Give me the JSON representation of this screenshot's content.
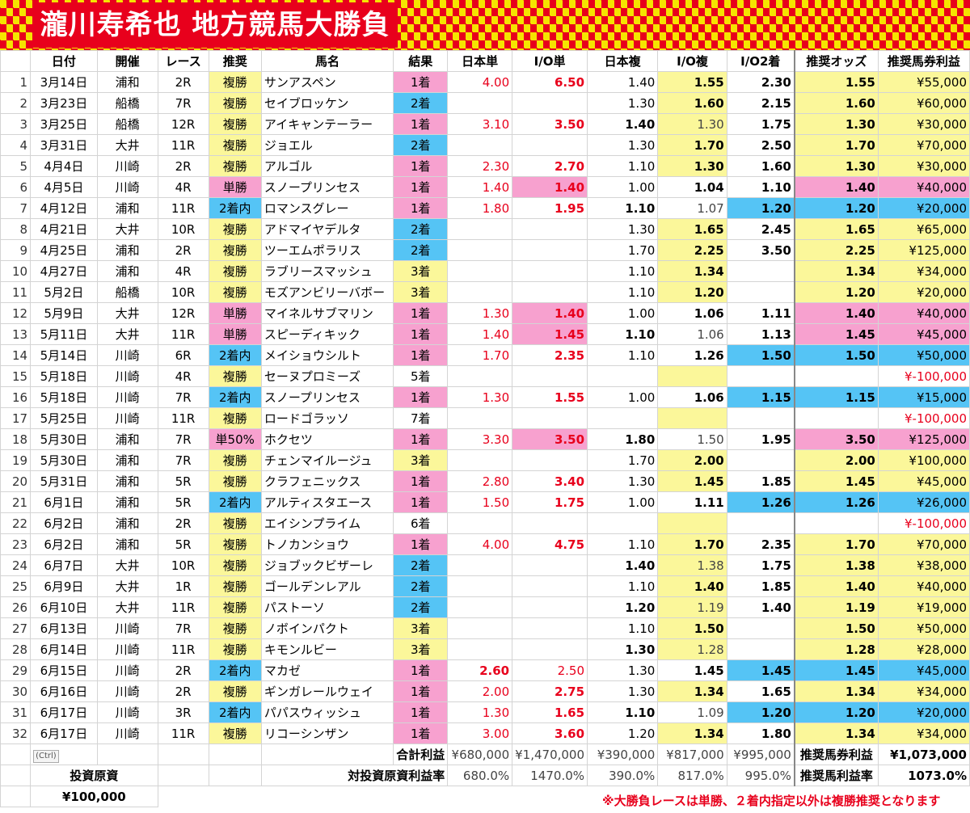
{
  "sheet": {
    "title": "瀧川寿希也 地方競馬大勝負",
    "footnote": "※大勝負レースは単勝、２着内指定以外は複勝推奨となります",
    "ctrl_label": "(Ctrl)",
    "colors": {
      "pink": "#f7a1cf",
      "yellow": "#fbf79a",
      "blue": "#55c4f5",
      "red": "#e8001c"
    }
  },
  "columns": [
    "日付",
    "開催",
    "レース",
    "推奨",
    "馬名",
    "結果",
    "日本単",
    "I/O単",
    "日本複",
    "I/O複",
    "I/O2着",
    "推奨オッズ",
    "推奨馬券利益"
  ],
  "rows": [
    {
      "n": "1",
      "date": "3月14日",
      "venue": "浦和",
      "race": "2R",
      "rec": "複勝",
      "horse": "サンアスペン",
      "result": "1着",
      "jw": "4.00",
      "iow": "6.50",
      "jp": "1.40",
      "iop": "1.55",
      "io2": "2.30",
      "odds": "1.55",
      "profit": "¥55,000"
    },
    {
      "n": "2",
      "date": "3月23日",
      "venue": "船橋",
      "race": "7R",
      "rec": "複勝",
      "horse": "セイブロッケン",
      "result": "2着",
      "jw": "",
      "iow": "",
      "jp": "1.30",
      "iop": "1.60",
      "io2": "2.15",
      "odds": "1.60",
      "profit": "¥60,000"
    },
    {
      "n": "3",
      "date": "3月25日",
      "venue": "船橋",
      "race": "12R",
      "rec": "複勝",
      "horse": "アイキャンテーラー",
      "result": "1着",
      "jw": "3.10",
      "iow": "3.50",
      "jp": "1.40",
      "iop": "1.30",
      "io2": "1.75",
      "odds": "1.30",
      "profit": "¥30,000"
    },
    {
      "n": "4",
      "date": "3月31日",
      "venue": "大井",
      "race": "11R",
      "rec": "複勝",
      "horse": "ジョエル",
      "result": "2着",
      "jw": "",
      "iow": "",
      "jp": "1.30",
      "iop": "1.70",
      "io2": "2.50",
      "odds": "1.70",
      "profit": "¥70,000"
    },
    {
      "n": "5",
      "date": "4月4日",
      "venue": "川崎",
      "race": "2R",
      "rec": "複勝",
      "horse": "アルゴル",
      "result": "1着",
      "jw": "2.30",
      "iow": "2.70",
      "jp": "1.10",
      "iop": "1.30",
      "io2": "1.60",
      "odds": "1.30",
      "profit": "¥30,000"
    },
    {
      "n": "6",
      "date": "4月5日",
      "venue": "川崎",
      "race": "4R",
      "rec": "単勝",
      "horse": "スノープリンセス",
      "result": "1着",
      "jw": "1.40",
      "iow": "1.40",
      "jp": "1.00",
      "iop": "1.04",
      "io2": "1.10",
      "odds": "1.40",
      "profit": "¥40,000"
    },
    {
      "n": "7",
      "date": "4月12日",
      "venue": "浦和",
      "race": "11R",
      "rec": "2着内",
      "horse": "ロマンスグレー",
      "result": "1着",
      "jw": "1.80",
      "iow": "1.95",
      "jp": "1.10",
      "iop": "1.07",
      "io2": "1.20",
      "odds": "1.20",
      "profit": "¥20,000"
    },
    {
      "n": "8",
      "date": "4月21日",
      "venue": "大井",
      "race": "10R",
      "rec": "複勝",
      "horse": "アドマイヤデルタ",
      "result": "2着",
      "jw": "",
      "iow": "",
      "jp": "1.30",
      "iop": "1.65",
      "io2": "2.45",
      "odds": "1.65",
      "profit": "¥65,000"
    },
    {
      "n": "9",
      "date": "4月25日",
      "venue": "浦和",
      "race": "2R",
      "rec": "複勝",
      "horse": "ツーエムポラリス",
      "result": "2着",
      "jw": "",
      "iow": "",
      "jp": "1.70",
      "iop": "2.25",
      "io2": "3.50",
      "odds": "2.25",
      "profit": "¥125,000"
    },
    {
      "n": "10",
      "date": "4月27日",
      "venue": "浦和",
      "race": "4R",
      "rec": "複勝",
      "horse": "ラブリースマッシュ",
      "result": "3着",
      "jw": "",
      "iow": "",
      "jp": "1.10",
      "iop": "1.34",
      "io2": "",
      "odds": "1.34",
      "profit": "¥34,000"
    },
    {
      "n": "11",
      "date": "5月2日",
      "venue": "船橋",
      "race": "10R",
      "rec": "複勝",
      "horse": "モズアンビリーバボー",
      "result": "3着",
      "jw": "",
      "iow": "",
      "jp": "1.10",
      "iop": "1.20",
      "io2": "",
      "odds": "1.20",
      "profit": "¥20,000"
    },
    {
      "n": "12",
      "date": "5月9日",
      "venue": "大井",
      "race": "12R",
      "rec": "単勝",
      "horse": "マイネルサブマリン",
      "result": "1着",
      "jw": "1.30",
      "iow": "1.40",
      "jp": "1.00",
      "iop": "1.06",
      "io2": "1.11",
      "odds": "1.40",
      "profit": "¥40,000"
    },
    {
      "n": "13",
      "date": "5月11日",
      "venue": "大井",
      "race": "11R",
      "rec": "単勝",
      "horse": "スピーディキック",
      "result": "1着",
      "jw": "1.40",
      "iow": "1.45",
      "jp": "1.10",
      "iop": "1.06",
      "io2": "1.13",
      "odds": "1.45",
      "profit": "¥45,000"
    },
    {
      "n": "14",
      "date": "5月14日",
      "venue": "川崎",
      "race": "6R",
      "rec": "2着内",
      "horse": "メイショウシルト",
      "result": "1着",
      "jw": "1.70",
      "iow": "2.35",
      "jp": "1.10",
      "iop": "1.26",
      "io2": "1.50",
      "odds": "1.50",
      "profit": "¥50,000"
    },
    {
      "n": "15",
      "date": "5月18日",
      "venue": "川崎",
      "race": "4R",
      "rec": "複勝",
      "horse": "セーヌプロミーズ",
      "result": "5着",
      "jw": "",
      "iow": "",
      "jp": "",
      "iop": "",
      "io2": "",
      "odds": "",
      "profit": "¥-100,000"
    },
    {
      "n": "16",
      "date": "5月18日",
      "venue": "川崎",
      "race": "7R",
      "rec": "2着内",
      "horse": "スノープリンセス",
      "result": "1着",
      "jw": "1.30",
      "iow": "1.55",
      "jp": "1.00",
      "iop": "1.06",
      "io2": "1.15",
      "odds": "1.15",
      "profit": "¥15,000"
    },
    {
      "n": "17",
      "date": "5月25日",
      "venue": "川崎",
      "race": "11R",
      "rec": "複勝",
      "horse": "ロードゴラッソ",
      "result": "7着",
      "jw": "",
      "iow": "",
      "jp": "",
      "iop": "",
      "io2": "",
      "odds": "",
      "profit": "¥-100,000"
    },
    {
      "n": "18",
      "date": "5月30日",
      "venue": "浦和",
      "race": "7R",
      "rec": "単50%",
      "horse": "ホクセツ",
      "result": "1着",
      "jw": "3.30",
      "iow": "3.50",
      "jp": "1.80",
      "iop": "1.50",
      "io2": "1.95",
      "odds": "3.50",
      "profit": "¥125,000"
    },
    {
      "n": "19",
      "date": "5月30日",
      "venue": "浦和",
      "race": "7R",
      "rec": "複勝",
      "horse": "チェンマイルージュ",
      "result": "3着",
      "jw": "",
      "iow": "",
      "jp": "1.70",
      "iop": "2.00",
      "io2": "",
      "odds": "2.00",
      "profit": "¥100,000"
    },
    {
      "n": "20",
      "date": "5月31日",
      "venue": "浦和",
      "race": "5R",
      "rec": "複勝",
      "horse": "クラフェニックス",
      "result": "1着",
      "jw": "2.80",
      "iow": "3.40",
      "jp": "1.30",
      "iop": "1.45",
      "io2": "1.85",
      "odds": "1.45",
      "profit": "¥45,000"
    },
    {
      "n": "21",
      "date": "6月1日",
      "venue": "浦和",
      "race": "5R",
      "rec": "2着内",
      "horse": "アルティスタエース",
      "result": "1着",
      "jw": "1.50",
      "iow": "1.75",
      "jp": "1.00",
      "iop": "1.11",
      "io2": "1.26",
      "odds": "1.26",
      "profit": "¥26,000"
    },
    {
      "n": "22",
      "date": "6月2日",
      "venue": "浦和",
      "race": "2R",
      "rec": "複勝",
      "horse": "エイシンプライム",
      "result": "6着",
      "jw": "",
      "iow": "",
      "jp": "",
      "iop": "",
      "io2": "",
      "odds": "",
      "profit": "¥-100,000"
    },
    {
      "n": "23",
      "date": "6月2日",
      "venue": "浦和",
      "race": "5R",
      "rec": "複勝",
      "horse": "トノカンショウ",
      "result": "1着",
      "jw": "4.00",
      "iow": "4.75",
      "jp": "1.10",
      "iop": "1.70",
      "io2": "2.35",
      "odds": "1.70",
      "profit": "¥70,000"
    },
    {
      "n": "24",
      "date": "6月7日",
      "venue": "大井",
      "race": "10R",
      "rec": "複勝",
      "horse": "ジョブックビザーレ",
      "result": "2着",
      "jw": "",
      "iow": "",
      "jp": "1.40",
      "iop": "1.38",
      "io2": "1.75",
      "odds": "1.38",
      "profit": "¥38,000"
    },
    {
      "n": "25",
      "date": "6月9日",
      "venue": "大井",
      "race": "1R",
      "rec": "複勝",
      "horse": "ゴールデンレアル",
      "result": "2着",
      "jw": "",
      "iow": "",
      "jp": "1.10",
      "iop": "1.40",
      "io2": "1.85",
      "odds": "1.40",
      "profit": "¥40,000"
    },
    {
      "n": "26",
      "date": "6月10日",
      "venue": "大井",
      "race": "11R",
      "rec": "複勝",
      "horse": "パストーソ",
      "result": "2着",
      "jw": "",
      "iow": "",
      "jp": "1.20",
      "iop": "1.19",
      "io2": "1.40",
      "odds": "1.19",
      "profit": "¥19,000"
    },
    {
      "n": "27",
      "date": "6月13日",
      "venue": "川崎",
      "race": "7R",
      "rec": "複勝",
      "horse": "ノボインパクト",
      "result": "3着",
      "jw": "",
      "iow": "",
      "jp": "1.10",
      "iop": "1.50",
      "io2": "",
      "odds": "1.50",
      "profit": "¥50,000"
    },
    {
      "n": "28",
      "date": "6月14日",
      "venue": "川崎",
      "race": "11R",
      "rec": "複勝",
      "horse": "キモンルビー",
      "result": "3着",
      "jw": "",
      "iow": "",
      "jp": "1.30",
      "iop": "1.28",
      "io2": "",
      "odds": "1.28",
      "profit": "¥28,000"
    },
    {
      "n": "29",
      "date": "6月15日",
      "venue": "川崎",
      "race": "2R",
      "rec": "2着内",
      "horse": "マカゼ",
      "result": "1着",
      "jw": "2.60",
      "iow": "2.50",
      "jp": "1.30",
      "iop": "1.45",
      "io2": "1.45",
      "odds": "1.45",
      "profit": "¥45,000"
    },
    {
      "n": "30",
      "date": "6月16日",
      "venue": "川崎",
      "race": "2R",
      "rec": "複勝",
      "horse": "ギンガレールウェイ",
      "result": "1着",
      "jw": "2.00",
      "iow": "2.75",
      "jp": "1.30",
      "iop": "1.34",
      "io2": "1.65",
      "odds": "1.34",
      "profit": "¥34,000"
    },
    {
      "n": "31",
      "date": "6月17日",
      "venue": "川崎",
      "race": "3R",
      "rec": "2着内",
      "horse": "パパスウィッシュ",
      "result": "1着",
      "jw": "1.30",
      "iow": "1.65",
      "jp": "1.10",
      "iop": "1.09",
      "io2": "1.20",
      "odds": "1.20",
      "profit": "¥20,000"
    },
    {
      "n": "32",
      "date": "6月17日",
      "venue": "川崎",
      "race": "11R",
      "rec": "複勝",
      "horse": "リコーシンザン",
      "result": "1着",
      "jw": "3.00",
      "iow": "3.60",
      "jp": "1.20",
      "iop": "1.34",
      "io2": "1.80",
      "odds": "1.34",
      "profit": "¥34,000"
    }
  ],
  "summary": {
    "total_label": "合計利益",
    "total_jw": "¥680,000",
    "total_iow": "¥1,470,000",
    "total_jp": "¥390,000",
    "total_iop": "¥817,000",
    "total_io2": "¥995,000",
    "rec_profit_label": "推奨馬券利益",
    "rec_profit": "¥1,073,000",
    "capital_label": "投資原資",
    "capital": "¥100,000",
    "rate_label": "対投資原資利益率",
    "rate_jw": "680.0%",
    "rate_iow": "1470.0%",
    "rate_jp": "390.0%",
    "rate_iop": "817.0%",
    "rate_io2": "995.0%",
    "rec_rate_label": "推奨馬利益率",
    "rec_rate": "1073.0%"
  }
}
